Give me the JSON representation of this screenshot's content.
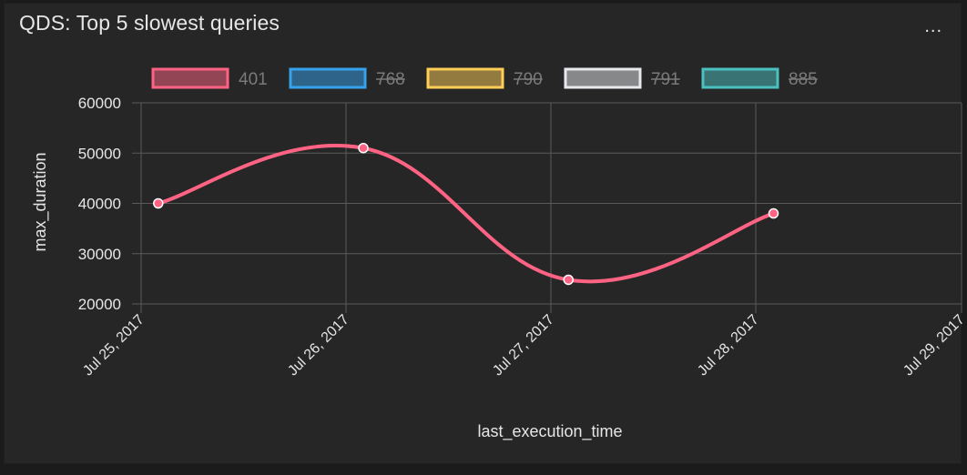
{
  "panel": {
    "title": "QDS: Top 5 slowest queries",
    "menu_label": "..."
  },
  "chart_data": {
    "type": "line",
    "xlabel": "last_execution_time",
    "ylabel": "max_duration",
    "ylim": [
      20000,
      60000
    ],
    "y_ticks": [
      "60000",
      "50000",
      "40000",
      "30000",
      "20000"
    ],
    "x_ticks": [
      "Jul 25, 2017",
      "Jul 26, 2017",
      "Jul 27, 2017",
      "Jul 28, 2017",
      "Jul 29, 2017"
    ],
    "grid": true,
    "legend_placement": "top",
    "series": [
      {
        "name": "401",
        "color": "#ff6384",
        "hidden": false,
        "points": [
          {
            "x": "Jul 25, 2017 02:00",
            "y": 40000
          },
          {
            "x": "Jul 26, 2017 02:00",
            "y": 51000
          },
          {
            "x": "Jul 27, 2017 02:00",
            "y": 24800
          },
          {
            "x": "Jul 28, 2017 02:00",
            "y": 38000
          }
        ]
      },
      {
        "name": "768",
        "color": "#36a2eb",
        "hidden": true,
        "points": []
      },
      {
        "name": "790",
        "color": "#ffce56",
        "hidden": true,
        "points": []
      },
      {
        "name": "791",
        "color": "#e7e9ed",
        "hidden": true,
        "points": []
      },
      {
        "name": "885",
        "color": "#4bc0c0",
        "hidden": true,
        "points": []
      }
    ]
  }
}
